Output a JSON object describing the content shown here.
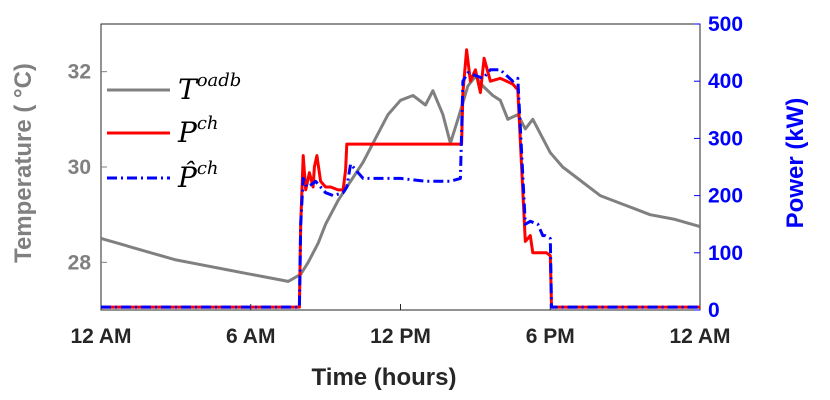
{
  "chart_data": {
    "type": "line",
    "xlabel": "Time (hours)",
    "ylabel_left": "Temperature (   °C)",
    "ylabel_right": "Power (kW)",
    "x_ticks": [
      "12 AM",
      "6 AM",
      "12 PM",
      "6 PM",
      "12 AM"
    ],
    "x_tick_hours": [
      0,
      6,
      12,
      18,
      24
    ],
    "xlim_hours": [
      0,
      24
    ],
    "ylim_left": [
      27,
      33
    ],
    "ylim_right": [
      0,
      500
    ],
    "y_ticks_left": [
      "28",
      "30",
      "32"
    ],
    "y_ticks_left_values": [
      28,
      30,
      32
    ],
    "y_ticks_right": [
      "0",
      "100",
      "200",
      "300",
      "400",
      "500"
    ],
    "y_ticks_right_values": [
      0,
      100,
      200,
      300,
      400,
      500
    ],
    "grid": false,
    "legend_position": "top-left",
    "colors": {
      "left_axis": "#808080",
      "right_axis": "#0000ff"
    },
    "series": [
      {
        "name": "T",
        "superscript": "oadb",
        "axis": "left",
        "color": "#808080",
        "style": "solid",
        "x": [
          0,
          1,
          2,
          3,
          4,
          5,
          6,
          6.5,
          7,
          7.5,
          8,
          8.3,
          8.7,
          9,
          9.5,
          10,
          10.5,
          11,
          11.5,
          12,
          12.5,
          13,
          13.3,
          13.7,
          14,
          14.3,
          14.7,
          15,
          15.3,
          15.7,
          16,
          16.3,
          16.7,
          17,
          17.3,
          17.7,
          18,
          18.5,
          19,
          19.5,
          20,
          21,
          22,
          23,
          24
        ],
        "y": [
          28.5,
          28.35,
          28.2,
          28.05,
          27.95,
          27.85,
          27.75,
          27.7,
          27.65,
          27.6,
          27.75,
          28.0,
          28.4,
          28.8,
          29.3,
          29.7,
          30.1,
          30.6,
          31.1,
          31.4,
          31.5,
          31.3,
          31.6,
          31.1,
          30.5,
          31.0,
          31.7,
          31.9,
          31.7,
          31.5,
          31.4,
          31.0,
          31.1,
          30.8,
          31.0,
          30.6,
          30.3,
          30.0,
          29.8,
          29.6,
          29.4,
          29.2,
          29.0,
          28.9,
          28.75
        ]
      },
      {
        "name": "P",
        "superscript": "ch",
        "axis": "right",
        "color": "#ff0000",
        "style": "solid",
        "x": [
          0,
          7.95,
          8.0,
          8.1,
          8.2,
          8.35,
          8.5,
          8.55,
          8.65,
          8.8,
          9.0,
          9.2,
          9.5,
          9.7,
          9.8,
          9.85,
          10.0,
          12,
          14,
          14.45,
          14.5,
          14.65,
          14.8,
          15.0,
          15.2,
          15.35,
          15.6,
          16.0,
          16.5,
          16.7,
          17.0,
          17.2,
          17.3,
          17.5,
          17.85,
          18.0,
          18.05,
          18.3,
          19,
          24
        ],
        "y": [
          5,
          5,
          150,
          270,
          210,
          240,
          215,
          250,
          270,
          225,
          215,
          215,
          210,
          210,
          245,
          290,
          290,
          290,
          290,
          290,
          380,
          455,
          400,
          420,
          380,
          440,
          400,
          405,
          395,
          385,
          120,
          130,
          100,
          100,
          100,
          95,
          5,
          5,
          5,
          5
        ]
      },
      {
        "name": "P̂",
        "superscript": "ch",
        "axis": "right",
        "color": "#0000ff",
        "style": "dashdot",
        "x": [
          0,
          7.95,
          8.0,
          8.1,
          8.25,
          8.45,
          8.6,
          8.8,
          9.0,
          9.3,
          9.7,
          9.85,
          10.0,
          10.5,
          11,
          12,
          13,
          14,
          14.4,
          14.5,
          14.7,
          15.0,
          15.3,
          15.6,
          16.0,
          16.5,
          16.7,
          17.0,
          17.2,
          17.5,
          17.7,
          17.8,
          18.0,
          18.05,
          18.3,
          19,
          24
        ],
        "y": [
          5,
          5,
          150,
          230,
          215,
          220,
          225,
          215,
          205,
          200,
          205,
          215,
          255,
          230,
          230,
          230,
          225,
          225,
          230,
          400,
          415,
          410,
          405,
          420,
          420,
          400,
          405,
          150,
          155,
          150,
          130,
          130,
          125,
          5,
          5,
          5,
          5
        ]
      }
    ]
  }
}
